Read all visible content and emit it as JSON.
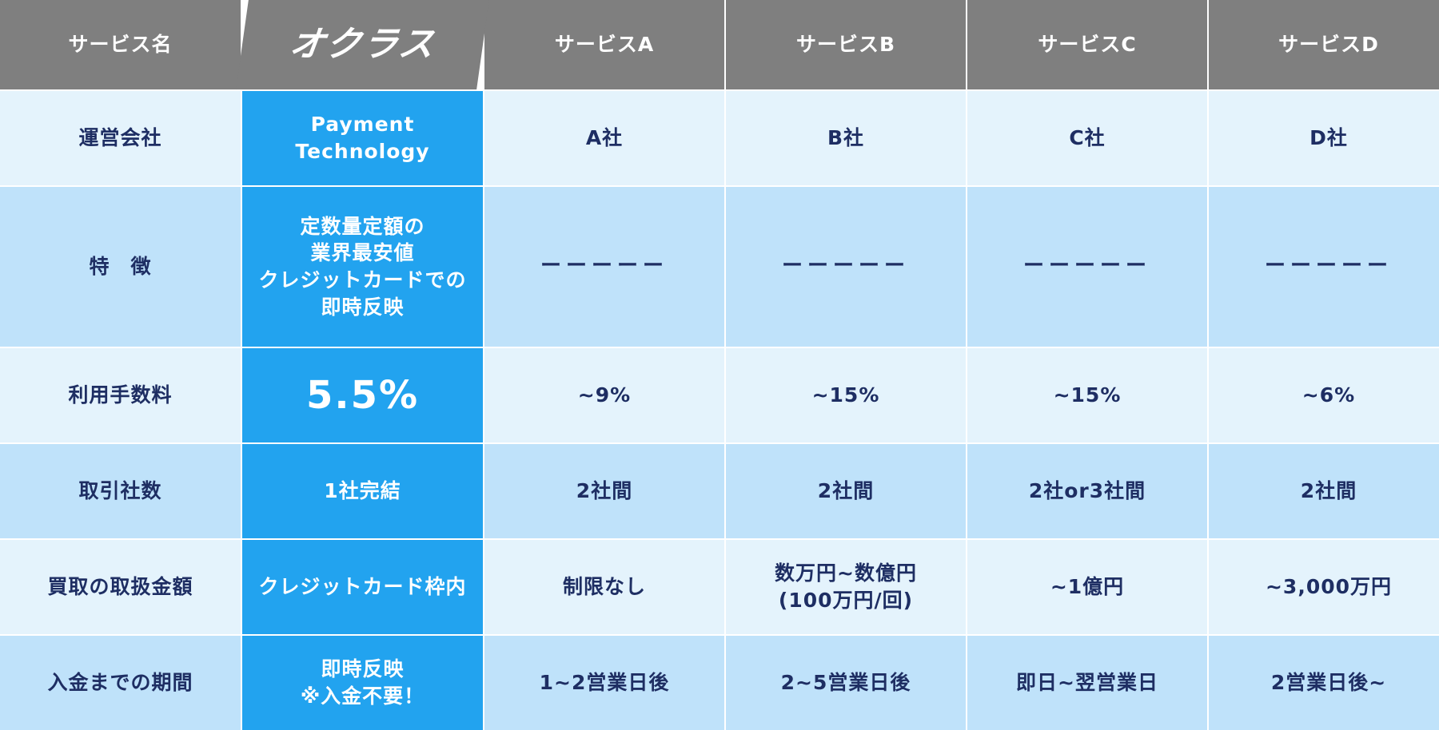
{
  "header": {
    "label": "サービス名",
    "featured": "オクラス",
    "services": [
      "サービスA",
      "サービスB",
      "サービスC",
      "サービスD"
    ]
  },
  "rows": [
    {
      "label": "運営会社",
      "featured": "Payment\nTechnology",
      "values": [
        "A社",
        "B社",
        "C社",
        "D社"
      ]
    },
    {
      "label": "特　徴",
      "featured": "定数量定額の\n業界最安値\nクレジットカードでの\n即時反映",
      "values": [
        "ーーーーー",
        "ーーーーー",
        "ーーーーー",
        "ーーーーー"
      ]
    },
    {
      "label": "利用手数料",
      "featured": "5.5%",
      "values": [
        "~9%",
        "~15%",
        "~15%",
        "~6%"
      ]
    },
    {
      "label": "取引社数",
      "featured": "1社完結",
      "values": [
        "2社間",
        "2社間",
        "2社or3社間",
        "2社間"
      ]
    },
    {
      "label": "買取の取扱金額",
      "featured": "クレジットカード枠内",
      "values": [
        "制限なし",
        "数万円~数億円\n(100万円/回)",
        "~1億円",
        "~3,000万円"
      ]
    },
    {
      "label": "入金までの期間",
      "featured": "即時反映\n※入金不要！",
      "values": [
        "1~2営業日後",
        "2~5営業日後",
        "即日~翌営業日",
        "2営業日後~"
      ]
    }
  ],
  "colors": {
    "header_bg": "#7f7f7f",
    "featured_bg": "#22a3ef",
    "row_light_bg": "#e4f3fc",
    "row_mid_bg": "#bfe2fa",
    "text": "#1e2e63"
  }
}
